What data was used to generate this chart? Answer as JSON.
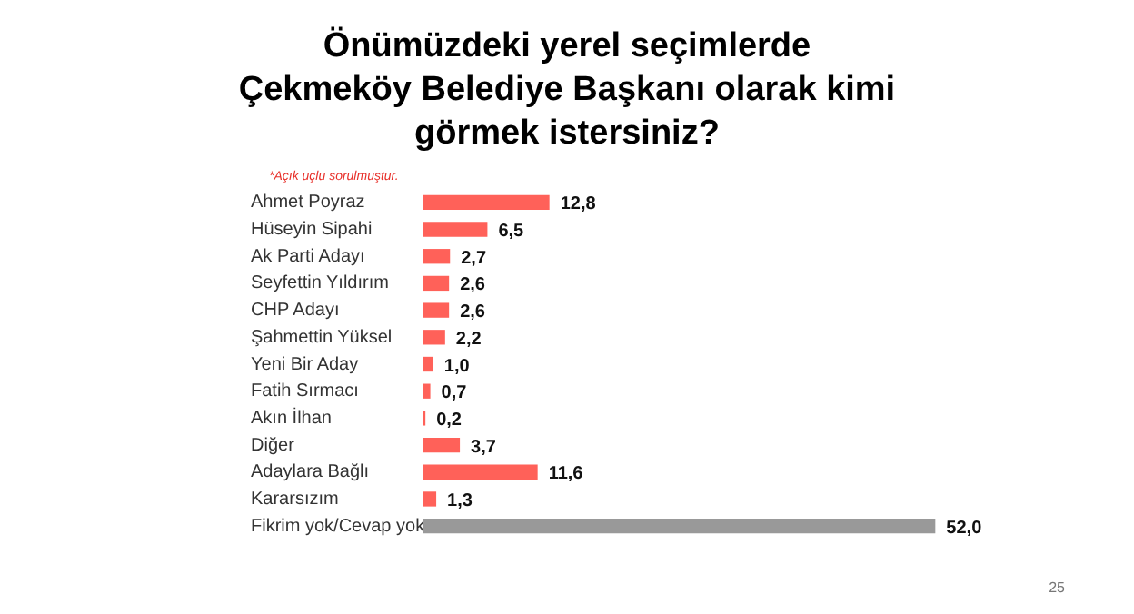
{
  "chart_data": {
    "type": "bar",
    "orientation": "horizontal",
    "title": "Önümüzdeki yerel seçimlerde Çekmeköy Belediye Başkanı olarak kimi görmek istersiniz?",
    "subtitle": "*Açık uçlu sorulmuştur.",
    "categories": [
      "Ahmet Poyraz",
      "Hüseyin Sipahi",
      "Ak Parti Adayı",
      "Seyfettin Yıldırım",
      "CHP Adayı",
      "Şahmettin Yüksel",
      "Yeni Bir Aday",
      "Fatih Sırmacı",
      "Akın İlhan",
      "Diğer",
      "Adaylara Bağlı",
      "Kararsızım",
      "Fikrim yok/Cevap yok"
    ],
    "values": [
      12.8,
      6.5,
      2.7,
      2.6,
      2.6,
      2.2,
      1.0,
      0.7,
      0.2,
      3.7,
      11.6,
      1.3,
      52.0
    ],
    "colors": [
      "#ff6159",
      "#ff6159",
      "#ff6159",
      "#ff6159",
      "#ff6159",
      "#ff6159",
      "#ff6159",
      "#ff6159",
      "#ff6159",
      "#ff6159",
      "#ff6159",
      "#ff6159",
      "#999999"
    ],
    "value_labels": [
      "12,8",
      "6,5",
      "2,7",
      "2,6",
      "2,6",
      "2,2",
      "1,0",
      "0,7",
      "0,2",
      "3,7",
      "11,6",
      "1,3",
      "52,0"
    ],
    "annotations": [
      "25"
    ],
    "grid": false,
    "legend": false
  }
}
